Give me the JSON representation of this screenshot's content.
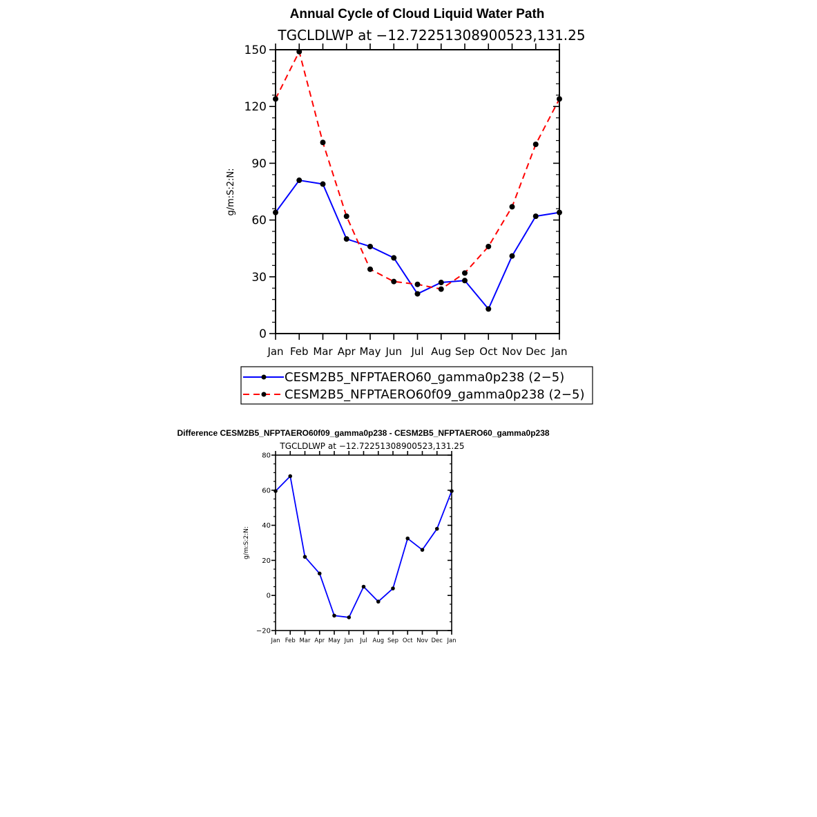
{
  "chart_data": [
    {
      "type": "line",
      "title": "Annual Cycle of Cloud Liquid Water Path",
      "subtitle": "TGCLDLWP at −12.72251308900523,131.25",
      "xlabel": "",
      "ylabel": "g/m:S:2:N:",
      "categories": [
        "Jan",
        "Feb",
        "Mar",
        "Apr",
        "May",
        "Jun",
        "Jul",
        "Aug",
        "Sep",
        "Oct",
        "Nov",
        "Dec",
        "Jan"
      ],
      "yticks": [
        0,
        30,
        60,
        90,
        120,
        150
      ],
      "ylim": [
        0,
        150
      ],
      "legend_position": "below",
      "series": [
        {
          "name": "CESM2B5_NFPTAERO60_gamma0p238 (2−5)",
          "color": "#0000ff",
          "dash": "solid",
          "values": [
            64,
            81,
            79,
            50,
            46,
            40,
            21,
            27,
            28,
            13,
            41,
            62,
            64
          ]
        },
        {
          "name": "CESM2B5_NFPTAERO60f09_gamma0p238 (2−5)",
          "color": "#ff0000",
          "dash": "dashed",
          "values": [
            124,
            149,
            101,
            62,
            34,
            27.5,
            26,
            23.5,
            32,
            46,
            67,
            100,
            124
          ]
        }
      ]
    },
    {
      "type": "line",
      "title": "Difference CESM2B5_NFPTAERO60f09_gamma0p238 - CESM2B5_NFPTAERO60_gamma0p238",
      "subtitle": "TGCLDLWP at −12.72251308900523,131.25",
      "xlabel": "",
      "ylabel": "g/m:S:2:N:",
      "categories": [
        "Jan",
        "Feb",
        "Mar",
        "Apr",
        "May",
        "Jun",
        "Jul",
        "Aug",
        "Sep",
        "Oct",
        "Nov",
        "Dec",
        "Jan"
      ],
      "yticks": [
        -20,
        0,
        20,
        40,
        60,
        80
      ],
      "ylim": [
        -20,
        80
      ],
      "series": [
        {
          "name": "Difference",
          "color": "#0000ff",
          "dash": "solid",
          "values": [
            59.5,
            68,
            22,
            12.5,
            -11.5,
            -12.5,
            5,
            -3.5,
            4,
            32.5,
            26,
            38,
            59.5
          ]
        }
      ]
    }
  ],
  "colors": {
    "axis": "#000000",
    "marker": "#000000"
  }
}
